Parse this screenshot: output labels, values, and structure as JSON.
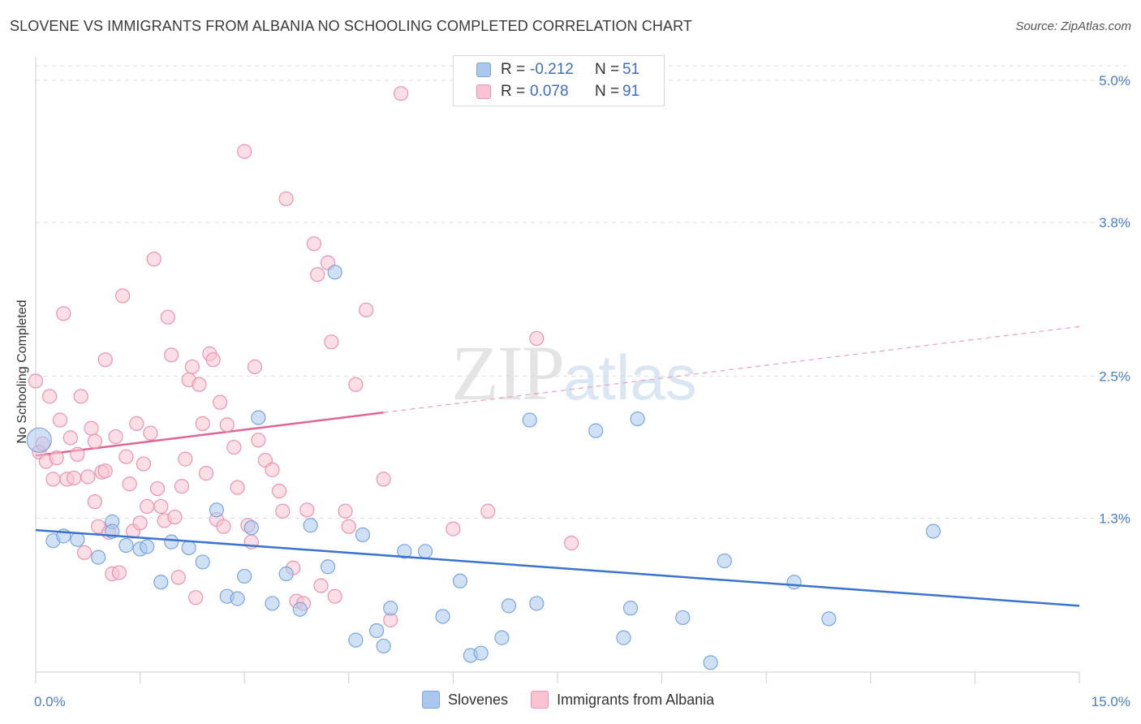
{
  "title": "SLOVENE VS IMMIGRANTS FROM ALBANIA NO SCHOOLING COMPLETED CORRELATION CHART",
  "source": "Source: ZipAtlas.com",
  "watermark": {
    "zip": "ZIP",
    "atlas": "atlas"
  },
  "legend": {
    "rows": [
      {
        "r_label": "R =",
        "r_value": "-0.212",
        "n_label": "N =",
        "n_value": "51",
        "color": "#aac8ee",
        "border": "#7aa6dd"
      },
      {
        "r_label": "R =",
        "r_value": "0.078",
        "n_label": "N =",
        "n_value": "91",
        "color": "#f9c3d2",
        "border": "#ea94ae"
      }
    ]
  },
  "bottom_legend": [
    {
      "label": "Slovenes",
      "color": "#aac8ee",
      "border": "#7aa6dd"
    },
    {
      "label": "Immigrants from Albania",
      "color": "#f9c3d2",
      "border": "#ea94ae"
    }
  ],
  "chart_data": {
    "type": "scatter",
    "title": "SLOVENE VS IMMIGRANTS FROM ALBANIA NO SCHOOLING COMPLETED CORRELATION CHART",
    "xlabel": "",
    "ylabel": "No Schooling Completed",
    "xlim": [
      0,
      15
    ],
    "ylim": [
      0,
      5.2
    ],
    "x_tick_labels": [
      {
        "value": 0,
        "label": "0.0%"
      },
      {
        "value": 15,
        "label": "15.0%"
      }
    ],
    "y_tick_labels": [
      {
        "value": 1.3,
        "label": "1.3%"
      },
      {
        "value": 2.5,
        "label": "2.5%"
      },
      {
        "value": 3.8,
        "label": "3.8%"
      },
      {
        "value": 5.0,
        "label": "5.0%"
      }
    ],
    "grid": true,
    "legend_position": "top-center",
    "series": [
      {
        "name": "Slovenes",
        "color": "#7aa6dd",
        "fill": "#aac8ee",
        "trend": {
          "x": [
            0.0,
            15.0
          ],
          "y": [
            1.2,
            0.56
          ],
          "dashed_from": null
        },
        "points": [
          [
            0.05,
            1.96
          ],
          [
            0.25,
            1.11
          ],
          [
            0.4,
            1.15
          ],
          [
            0.6,
            1.12
          ],
          [
            0.9,
            0.97
          ],
          [
            1.1,
            1.27
          ],
          [
            1.1,
            1.19
          ],
          [
            1.3,
            1.07
          ],
          [
            1.5,
            1.04
          ],
          [
            1.6,
            1.06
          ],
          [
            1.8,
            0.76
          ],
          [
            1.95,
            1.1
          ],
          [
            2.2,
            1.05
          ],
          [
            2.4,
            0.93
          ],
          [
            2.6,
            1.37
          ],
          [
            2.75,
            0.64
          ],
          [
            3.0,
            0.81
          ],
          [
            3.1,
            1.22
          ],
          [
            3.2,
            2.15
          ],
          [
            3.4,
            0.58
          ],
          [
            3.6,
            0.83
          ],
          [
            3.8,
            0.53
          ],
          [
            3.95,
            1.24
          ],
          [
            4.2,
            0.89
          ],
          [
            4.3,
            3.38
          ],
          [
            4.6,
            0.27
          ],
          [
            4.7,
            1.16
          ],
          [
            4.9,
            0.35
          ],
          [
            5.0,
            0.22
          ],
          [
            5.1,
            0.54
          ],
          [
            5.3,
            1.02
          ],
          [
            5.6,
            1.02
          ],
          [
            5.85,
            0.47
          ],
          [
            6.1,
            0.77
          ],
          [
            6.25,
            0.14
          ],
          [
            6.4,
            0.16
          ],
          [
            6.7,
            0.29
          ],
          [
            6.8,
            0.56
          ],
          [
            7.1,
            2.13
          ],
          [
            7.2,
            0.58
          ],
          [
            8.05,
            2.04
          ],
          [
            8.45,
            0.29
          ],
          [
            8.55,
            0.54
          ],
          [
            8.65,
            2.14
          ],
          [
            9.3,
            0.46
          ],
          [
            9.7,
            0.08
          ],
          [
            9.9,
            0.94
          ],
          [
            10.9,
            0.76
          ],
          [
            11.4,
            0.45
          ],
          [
            12.9,
            1.19
          ],
          [
            2.9,
            0.62
          ]
        ]
      },
      {
        "name": "Immigrants from Albania",
        "color": "#ea94ae",
        "fill": "#f9c3d2",
        "trend": {
          "x": [
            0.0,
            15.0
          ],
          "y": [
            1.83,
            2.92
          ],
          "solid_until": 5.0
        },
        "points": [
          [
            0.0,
            2.46
          ],
          [
            0.05,
            1.86
          ],
          [
            0.1,
            1.93
          ],
          [
            0.15,
            1.78
          ],
          [
            0.2,
            2.33
          ],
          [
            0.25,
            1.63
          ],
          [
            0.3,
            1.81
          ],
          [
            0.35,
            2.13
          ],
          [
            0.4,
            3.03
          ],
          [
            0.45,
            1.63
          ],
          [
            0.5,
            1.98
          ],
          [
            0.55,
            1.64
          ],
          [
            0.6,
            1.84
          ],
          [
            0.65,
            2.33
          ],
          [
            0.7,
            1.01
          ],
          [
            0.75,
            1.65
          ],
          [
            0.8,
            2.06
          ],
          [
            0.85,
            1.95
          ],
          [
            0.85,
            1.44
          ],
          [
            0.9,
            1.23
          ],
          [
            0.95,
            1.69
          ],
          [
            1.0,
            1.7
          ],
          [
            1.0,
            2.64
          ],
          [
            1.05,
            1.18
          ],
          [
            1.1,
            0.83
          ],
          [
            1.15,
            1.99
          ],
          [
            1.2,
            0.84
          ],
          [
            1.25,
            3.18
          ],
          [
            1.3,
            1.82
          ],
          [
            1.35,
            1.59
          ],
          [
            1.4,
            1.19
          ],
          [
            1.45,
            2.1
          ],
          [
            1.5,
            1.26
          ],
          [
            1.55,
            1.76
          ],
          [
            1.6,
            1.4
          ],
          [
            1.65,
            2.02
          ],
          [
            1.7,
            3.49
          ],
          [
            1.75,
            1.55
          ],
          [
            1.8,
            1.4
          ],
          [
            1.85,
            1.28
          ],
          [
            1.9,
            3.0
          ],
          [
            1.95,
            2.68
          ],
          [
            2.0,
            1.31
          ],
          [
            2.05,
            0.8
          ],
          [
            2.1,
            1.57
          ],
          [
            2.15,
            1.8
          ],
          [
            2.2,
            2.47
          ],
          [
            2.25,
            2.58
          ],
          [
            2.3,
            0.63
          ],
          [
            2.35,
            2.43
          ],
          [
            2.4,
            2.1
          ],
          [
            2.45,
            1.68
          ],
          [
            2.5,
            2.69
          ],
          [
            2.55,
            2.64
          ],
          [
            2.6,
            1.29
          ],
          [
            2.65,
            2.28
          ],
          [
            2.7,
            1.23
          ],
          [
            2.75,
            2.09
          ],
          [
            2.85,
            1.9
          ],
          [
            2.9,
            1.56
          ],
          [
            3.0,
            4.4
          ],
          [
            3.05,
            1.24
          ],
          [
            3.1,
            1.1
          ],
          [
            3.15,
            2.58
          ],
          [
            3.2,
            1.96
          ],
          [
            3.3,
            1.79
          ],
          [
            3.4,
            1.71
          ],
          [
            3.5,
            1.53
          ],
          [
            3.55,
            1.36
          ],
          [
            3.6,
            4.0
          ],
          [
            3.7,
            0.88
          ],
          [
            3.75,
            0.6
          ],
          [
            3.85,
            0.58
          ],
          [
            3.9,
            1.37
          ],
          [
            4.0,
            3.62
          ],
          [
            4.05,
            3.36
          ],
          [
            4.1,
            0.73
          ],
          [
            4.2,
            3.46
          ],
          [
            4.25,
            2.79
          ],
          [
            4.3,
            0.64
          ],
          [
            4.45,
            1.36
          ],
          [
            4.5,
            1.23
          ],
          [
            4.6,
            2.43
          ],
          [
            4.75,
            3.06
          ],
          [
            5.0,
            1.63
          ],
          [
            5.1,
            0.44
          ],
          [
            5.25,
            4.89
          ],
          [
            6.0,
            1.21
          ],
          [
            6.5,
            1.36
          ],
          [
            7.2,
            2.82
          ],
          [
            7.7,
            1.09
          ]
        ]
      }
    ]
  }
}
